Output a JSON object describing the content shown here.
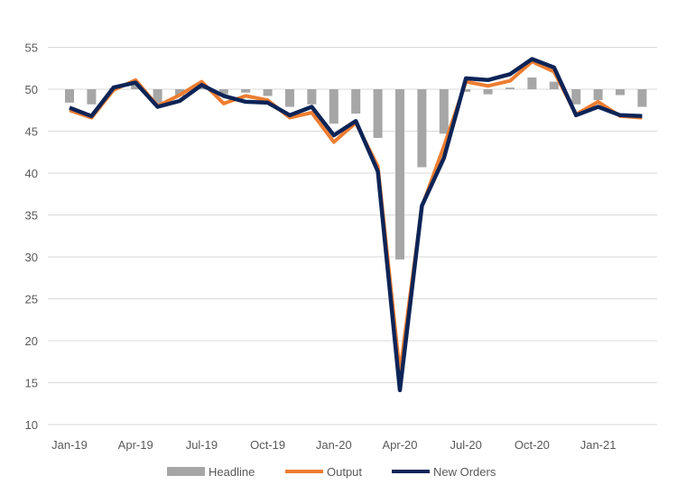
{
  "chart_data": {
    "type": "bar+line",
    "title": "",
    "xlabel": "",
    "ylabel": "",
    "ylim": [
      10,
      55
    ],
    "yticks": [
      10,
      15,
      20,
      25,
      30,
      35,
      40,
      45,
      50,
      55
    ],
    "bar_baseline": 50,
    "grid": true,
    "legend_position": "bottom",
    "categories": [
      "Jan-19",
      "Feb-19",
      "Mar-19",
      "Apr-19",
      "May-19",
      "Jun-19",
      "Jul-19",
      "Aug-19",
      "Sep-19",
      "Oct-19",
      "Nov-19",
      "Dec-19",
      "Jan-20",
      "Feb-20",
      "Mar-20",
      "Apr-20",
      "May-20",
      "Jun-20",
      "Jul-20",
      "Aug-20",
      "Sep-20",
      "Oct-20",
      "Nov-20",
      "Dec-20",
      "Jan-21",
      "Feb-21",
      "Mar-21"
    ],
    "xtick_labels": [
      "Jan-19",
      "Apr-19",
      "Jul-19",
      "Oct-19",
      "Jan-20",
      "Apr-20",
      "Jul-20",
      "Oct-20",
      "Jan-21"
    ],
    "series": [
      {
        "name": "Headline",
        "kind": "bar",
        "color": "#a6a6a6",
        "values": [
          48.4,
          48.2,
          50.1,
          50.6,
          48.1,
          49.2,
          50.3,
          49.4,
          49.6,
          49.2,
          47.9,
          48.2,
          45.9,
          47.1,
          44.2,
          29.7,
          40.7,
          44.7,
          49.7,
          49.4,
          50.2,
          51.4,
          50.9,
          48.2,
          48.7,
          49.3,
          47.9
        ]
      },
      {
        "name": "Output",
        "kind": "line",
        "color": "#ed7d31",
        "values": [
          47.5,
          46.6,
          49.9,
          51.1,
          48.0,
          49.3,
          50.9,
          48.3,
          49.2,
          48.7,
          46.6,
          47.2,
          43.7,
          46.0,
          40.8,
          16.2,
          36.0,
          43.2,
          50.9,
          50.4,
          51.0,
          53.3,
          52.1,
          47.0,
          48.5,
          46.8,
          46.6
        ]
      },
      {
        "name": "New Orders",
        "kind": "line",
        "color": "#0c2457",
        "values": [
          47.8,
          46.8,
          50.2,
          50.8,
          47.9,
          48.6,
          50.5,
          49.2,
          48.5,
          48.4,
          46.9,
          47.9,
          44.5,
          46.2,
          40.2,
          14.1,
          36.1,
          41.8,
          51.3,
          51.1,
          51.8,
          53.6,
          52.6,
          46.9,
          47.9,
          46.9,
          46.8
        ]
      }
    ]
  }
}
